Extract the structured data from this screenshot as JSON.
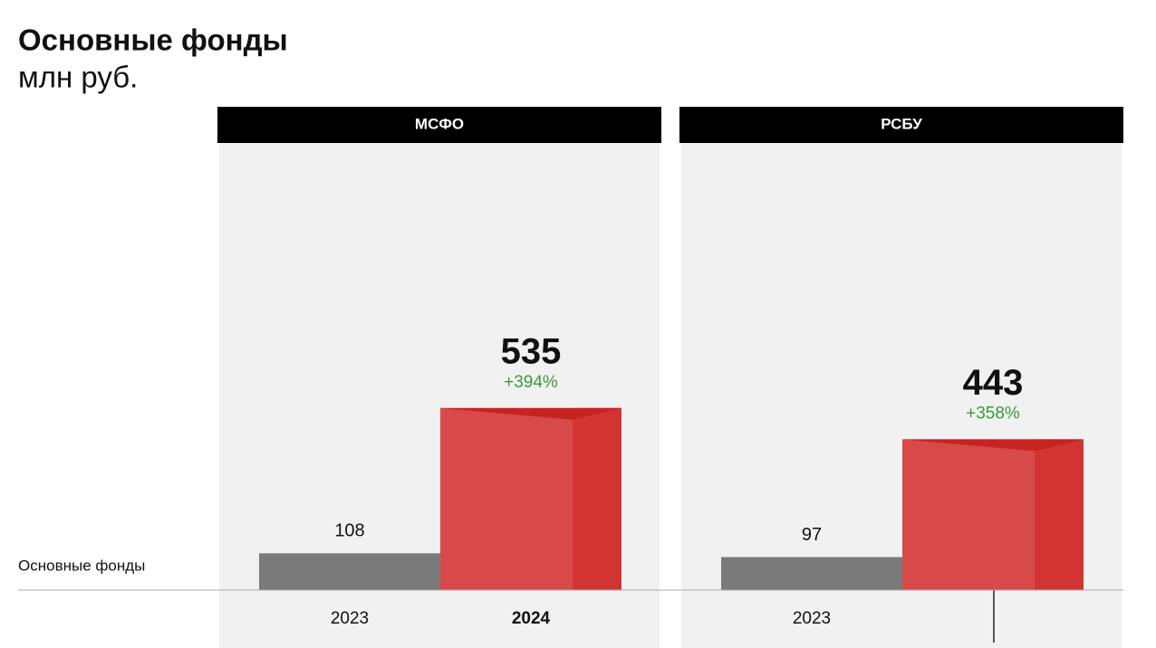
{
  "title": "Основные фонды",
  "subtitle": "млн руб.",
  "row_label": "Основные фонды",
  "chart_data": [
    {
      "type": "bar",
      "title": "МСФО",
      "categories": [
        "2023",
        "2024"
      ],
      "values": [
        108,
        535
      ],
      "change_label": "+394%",
      "colors": [
        "#7a7a7a",
        "#d84a4a"
      ]
    },
    {
      "type": "bar",
      "title": "РСБУ",
      "categories": [
        "2023",
        null
      ],
      "values": [
        97,
        443
      ],
      "change_label": "+358%",
      "colors": [
        "#7a7a7a",
        "#d84a4a"
      ]
    }
  ]
}
